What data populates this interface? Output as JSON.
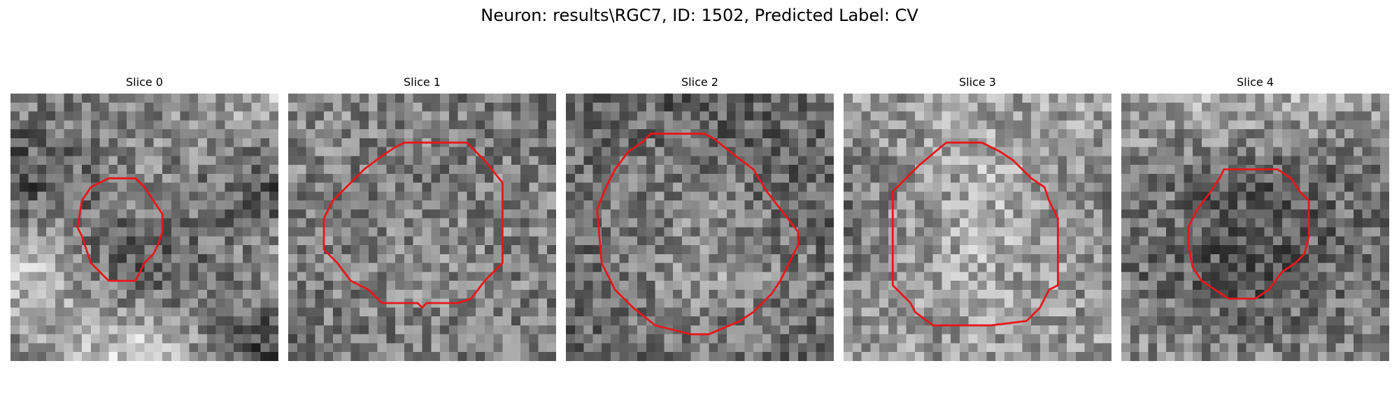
{
  "title": "Neuron: results\\RGC7, ID: 1502, Predicted Label: CV",
  "outline_color": "#e8161b",
  "grid_size": 30,
  "panels": [
    {
      "title": "Slice 0",
      "seed": 11,
      "brightness": [
        [
          0.5,
          0.5,
          0.72
        ],
        [
          0.28,
          0.55,
          0.34
        ],
        [
          0.8,
          0.28,
          0.6
        ],
        [
          0.5,
          0.88,
          0.18
        ]
      ],
      "contour": [
        [
          11,
          9.5
        ],
        [
          14,
          9.5
        ],
        [
          15,
          10.5
        ],
        [
          16,
          12
        ],
        [
          17,
          13.5
        ],
        [
          17,
          15.5
        ],
        [
          16.5,
          17
        ],
        [
          16,
          18
        ],
        [
          15,
          19
        ],
        [
          14,
          21
        ],
        [
          11,
          21
        ],
        [
          10,
          20
        ],
        [
          9,
          19
        ],
        [
          8.5,
          17.5
        ],
        [
          8,
          16
        ],
        [
          7.5,
          15
        ],
        [
          8,
          12
        ],
        [
          9,
          10.5
        ]
      ]
    },
    {
      "title": "Slice 1",
      "seed": 23,
      "brightness": [
        [
          0.55,
          0.5,
          0.45
        ],
        [
          0.5,
          0.48,
          0.52
        ],
        [
          0.48,
          0.55,
          0.5
        ],
        [
          0.45,
          0.5,
          0.5
        ]
      ],
      "contour": [
        [
          13,
          5.5
        ],
        [
          20,
          5.5
        ],
        [
          22,
          7.5
        ],
        [
          24,
          10
        ],
        [
          24,
          19
        ],
        [
          22,
          21
        ],
        [
          20.5,
          23
        ],
        [
          19,
          23.5
        ],
        [
          15.5,
          23.5
        ],
        [
          15,
          24
        ],
        [
          14.5,
          23.5
        ],
        [
          10.5,
          23.5
        ],
        [
          9,
          22
        ],
        [
          7,
          21
        ],
        [
          5.5,
          19
        ],
        [
          4,
          17.5
        ],
        [
          4,
          14
        ],
        [
          5,
          12
        ],
        [
          7,
          10
        ],
        [
          8.5,
          8.5
        ],
        [
          10.5,
          7
        ],
        [
          12,
          6
        ]
      ]
    },
    {
      "title": "Slice 2",
      "seed": 37,
      "brightness": [
        [
          0.45,
          0.35,
          0.4
        ],
        [
          0.42,
          0.5,
          0.38
        ],
        [
          0.4,
          0.6,
          0.45
        ],
        [
          0.42,
          0.45,
          0.4
        ]
      ],
      "contour": [
        [
          9.5,
          4.5
        ],
        [
          15.5,
          4.5
        ],
        [
          16.5,
          5
        ],
        [
          19,
          7
        ],
        [
          21,
          8.5
        ],
        [
          22.5,
          11
        ],
        [
          26,
          15.5
        ],
        [
          26,
          17
        ],
        [
          25,
          19
        ],
        [
          24,
          21
        ],
        [
          23,
          22.5
        ],
        [
          21,
          24.5
        ],
        [
          19.5,
          25.5
        ],
        [
          16,
          27
        ],
        [
          14,
          27
        ],
        [
          12,
          26.5
        ],
        [
          10,
          26
        ],
        [
          7.5,
          24
        ],
        [
          5.5,
          22
        ],
        [
          4,
          19
        ],
        [
          3.5,
          13
        ],
        [
          4.5,
          10.5
        ],
        [
          5.5,
          8.5
        ],
        [
          7,
          6.5
        ],
        [
          8.5,
          5.5
        ]
      ]
    },
    {
      "title": "Slice 3",
      "seed": 41,
      "brightness": [
        [
          0.6,
          0.62,
          0.65
        ],
        [
          0.45,
          0.7,
          0.5
        ],
        [
          0.5,
          0.68,
          0.55
        ],
        [
          0.58,
          0.6,
          0.62
        ]
      ],
      "contour": [
        [
          11.5,
          5.5
        ],
        [
          15.5,
          5.5
        ],
        [
          17.5,
          6.5
        ],
        [
          19,
          7.5
        ],
        [
          20,
          8.5
        ],
        [
          21,
          9.5
        ],
        [
          22.5,
          10.5
        ],
        [
          23,
          12
        ],
        [
          24,
          14
        ],
        [
          24,
          21.5
        ],
        [
          23,
          22
        ],
        [
          22,
          24
        ],
        [
          20.5,
          25.5
        ],
        [
          16.5,
          26
        ],
        [
          10,
          26
        ],
        [
          8,
          24.5
        ],
        [
          7.5,
          23.5
        ],
        [
          5.5,
          21.5
        ],
        [
          5.5,
          11
        ],
        [
          7,
          9.5
        ],
        [
          8.5,
          8
        ]
      ]
    },
    {
      "title": "Slice 4",
      "seed": 59,
      "brightness": [
        [
          0.62,
          0.7,
          0.6
        ],
        [
          0.5,
          0.35,
          0.45
        ],
        [
          0.45,
          0.3,
          0.48
        ],
        [
          0.55,
          0.5,
          0.55
        ]
      ],
      "contour": [
        [
          11.5,
          8.5
        ],
        [
          17.5,
          8.5
        ],
        [
          19,
          9.5
        ],
        [
          20,
          11
        ],
        [
          21,
          12
        ],
        [
          21,
          16
        ],
        [
          20.5,
          18
        ],
        [
          19.5,
          19
        ],
        [
          18,
          20
        ],
        [
          16.5,
          22
        ],
        [
          15,
          23
        ],
        [
          12,
          23
        ],
        [
          10.5,
          22
        ],
        [
          9,
          21
        ],
        [
          8,
          19.5
        ],
        [
          7.5,
          17
        ],
        [
          7.5,
          15
        ],
        [
          8.5,
          13
        ],
        [
          10,
          11
        ],
        [
          11,
          9.5
        ]
      ]
    }
  ]
}
